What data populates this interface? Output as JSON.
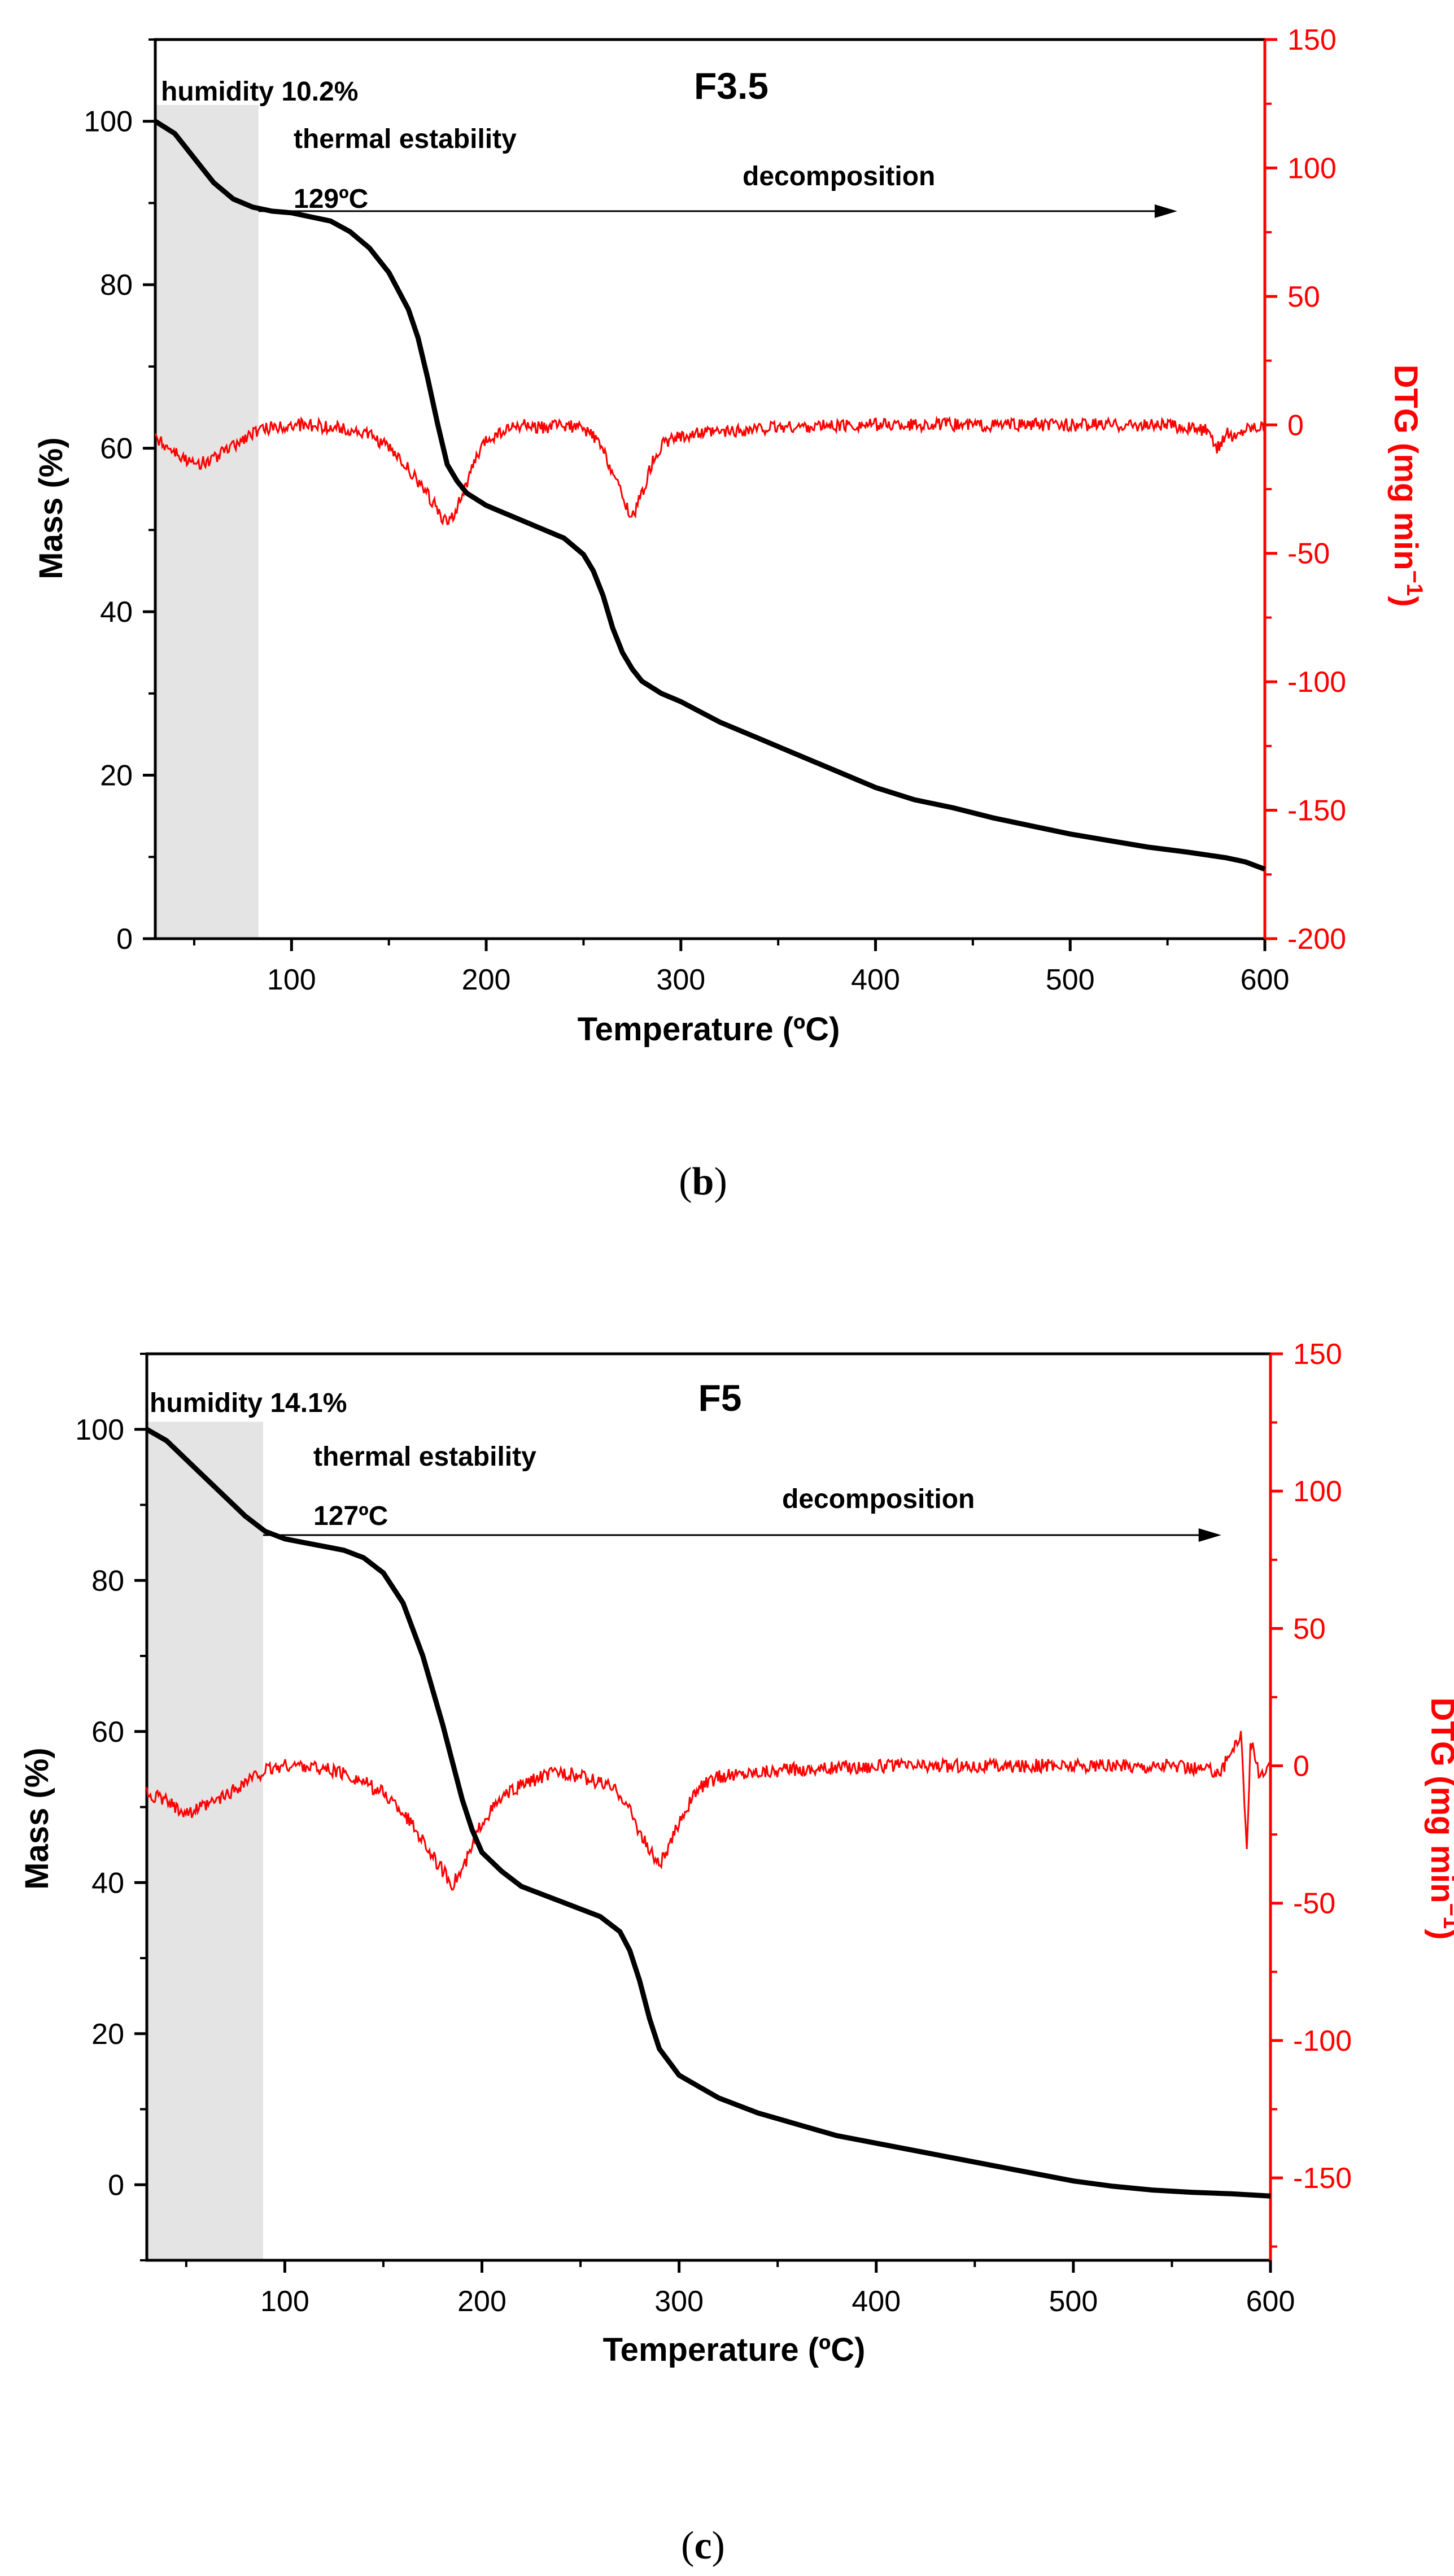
{
  "chart_data": [
    {
      "id": "b",
      "type": "line",
      "title": "F3.5",
      "caption_label": "b",
      "xlabel": "Temperature (ºC)",
      "ylabel_left": "Mass (%)",
      "ylabel_right": "DTG (mg min",
      "ylabel_right_sup": "−1",
      "xlim": [
        30,
        600
      ],
      "ylim_left": [
        0,
        110
      ],
      "ylim_right": [
        -200,
        150
      ],
      "x_ticks": [
        100,
        200,
        300,
        400,
        500,
        600
      ],
      "y_left_ticks": [
        0,
        20,
        40,
        60,
        80,
        100
      ],
      "y_right_ticks": [
        -200,
        -150,
        -100,
        -50,
        0,
        50,
        100,
        150
      ],
      "shaded_region": {
        "x_start": 30,
        "x_end": 83,
        "y_top": 102
      },
      "annotations": {
        "humidity": "humidity 10.2%",
        "stability": "thermal estability",
        "temp": "129ºC",
        "decomposition": "decomposition"
      },
      "arrow": {
        "x_start": 83,
        "x_end": 555,
        "y": 89
      },
      "series": [
        {
          "name": "Mass",
          "axis": "left",
          "color": "#000000",
          "x": [
            30,
            40,
            50,
            60,
            70,
            80,
            90,
            100,
            110,
            120,
            130,
            140,
            150,
            160,
            165,
            170,
            175,
            180,
            185,
            190,
            200,
            210,
            220,
            230,
            240,
            250,
            255,
            260,
            265,
            270,
            275,
            280,
            290,
            300,
            320,
            340,
            360,
            380,
            400,
            420,
            440,
            460,
            480,
            500,
            520,
            540,
            560,
            580,
            590,
            600
          ],
          "y": [
            100,
            98.5,
            95.5,
            92.5,
            90.5,
            89.5,
            89,
            88.8,
            88.3,
            87.8,
            86.5,
            84.5,
            81.5,
            77,
            73.5,
            68.5,
            63,
            58,
            56,
            54.5,
            53,
            52,
            51,
            50,
            49,
            47,
            45,
            42,
            38,
            35,
            33,
            31.5,
            30,
            29,
            26.5,
            24.5,
            22.5,
            20.5,
            18.5,
            17,
            16,
            14.8,
            13.8,
            12.8,
            12,
            11.2,
            10.6,
            9.9,
            9.4,
            8.5
          ]
        },
        {
          "name": "DTG",
          "axis": "right",
          "color": "#ff0000",
          "x": [
            30,
            40,
            50,
            60,
            70,
            80,
            90,
            100,
            110,
            120,
            130,
            140,
            150,
            160,
            165,
            170,
            175,
            180,
            185,
            190,
            195,
            200,
            210,
            220,
            230,
            240,
            250,
            255,
            260,
            265,
            270,
            275,
            280,
            285,
            290,
            300,
            320,
            350,
            400,
            450,
            500,
            550,
            570,
            575,
            580,
            585,
            590,
            600
          ],
          "y": [
            -5,
            -10,
            -16,
            -13,
            -8,
            -3,
            -1,
            0,
            0,
            -1,
            -2,
            -4,
            -9,
            -17,
            -22,
            -27,
            -33,
            -39,
            -32,
            -23,
            -13,
            -6,
            -2,
            0,
            -1,
            0,
            -2,
            -4,
            -10,
            -18,
            -28,
            -36,
            -27,
            -15,
            -8,
            -4,
            -3,
            -1,
            0,
            0,
            0,
            0,
            -2,
            -10,
            -3,
            -5,
            -1,
            0
          ]
        }
      ]
    },
    {
      "id": "c",
      "type": "line",
      "title": "F5",
      "caption_label": "c",
      "xlabel": "Temperature (ºC)",
      "ylabel_left": "Mass (%)",
      "ylabel_right": "DTG (mg min",
      "ylabel_right_sup": "−1",
      "xlim": [
        30,
        600
      ],
      "ylim_left": [
        -10,
        110
      ],
      "ylim_right": [
        -180,
        150
      ],
      "x_ticks": [
        100,
        200,
        300,
        400,
        500,
        600
      ],
      "y_left_ticks": [
        0,
        20,
        40,
        60,
        80,
        100
      ],
      "y_right_ticks": [
        -150,
        -100,
        -50,
        0,
        50,
        100,
        150
      ],
      "shaded_region": {
        "x_start": 30,
        "x_end": 89,
        "y_top": 101
      },
      "annotations": {
        "humidity": "humidity 14.1%",
        "stability": "thermal estability",
        "temp": "127ºC",
        "decomposition": "decomposition"
      },
      "arrow": {
        "x_start": 89,
        "x_end": 575,
        "y": 86
      },
      "series": [
        {
          "name": "Mass",
          "axis": "left",
          "color": "#000000",
          "x": [
            30,
            40,
            50,
            60,
            70,
            80,
            90,
            100,
            110,
            120,
            130,
            140,
            150,
            160,
            170,
            180,
            185,
            190,
            195,
            200,
            210,
            220,
            230,
            240,
            250,
            260,
            270,
            275,
            280,
            285,
            290,
            300,
            310,
            320,
            340,
            360,
            380,
            400,
            420,
            440,
            460,
            480,
            500,
            520,
            540,
            560,
            580,
            600
          ],
          "y": [
            100,
            98.5,
            96,
            93.5,
            91,
            88.5,
            86.5,
            85.5,
            85,
            84.5,
            84,
            83,
            81,
            77,
            70,
            61,
            56,
            51,
            47,
            44,
            41.5,
            39.5,
            38.5,
            37.5,
            36.5,
            35.5,
            33.5,
            31,
            27,
            22,
            18,
            14.5,
            13,
            11.5,
            9.5,
            8,
            6.5,
            5.5,
            4.5,
            3.5,
            2.5,
            1.5,
            0.5,
            -0.2,
            -0.7,
            -1.0,
            -1.2,
            -1.5
          ]
        },
        {
          "name": "DTG",
          "axis": "right",
          "color": "#ff0000",
          "x": [
            30,
            40,
            50,
            60,
            70,
            80,
            90,
            100,
            110,
            120,
            130,
            140,
            150,
            160,
            170,
            175,
            180,
            185,
            190,
            195,
            200,
            210,
            220,
            230,
            240,
            250,
            260,
            270,
            275,
            280,
            285,
            290,
            295,
            300,
            310,
            320,
            340,
            400,
            450,
            500,
            550,
            575,
            585,
            588,
            590,
            595,
            600
          ],
          "y": [
            -10,
            -13,
            -17,
            -15,
            -11,
            -6,
            -2,
            0,
            0,
            -1,
            -3,
            -6,
            -10,
            -17,
            -27,
            -33,
            -38,
            -43,
            -38,
            -30,
            -20,
            -12,
            -7,
            -4,
            -2,
            -4,
            -6,
            -10,
            -16,
            -24,
            -31,
            -36,
            -30,
            -20,
            -8,
            -4,
            -2,
            0,
            0,
            0,
            0,
            -2,
            12,
            -30,
            10,
            -5,
            0
          ]
        }
      ]
    }
  ]
}
